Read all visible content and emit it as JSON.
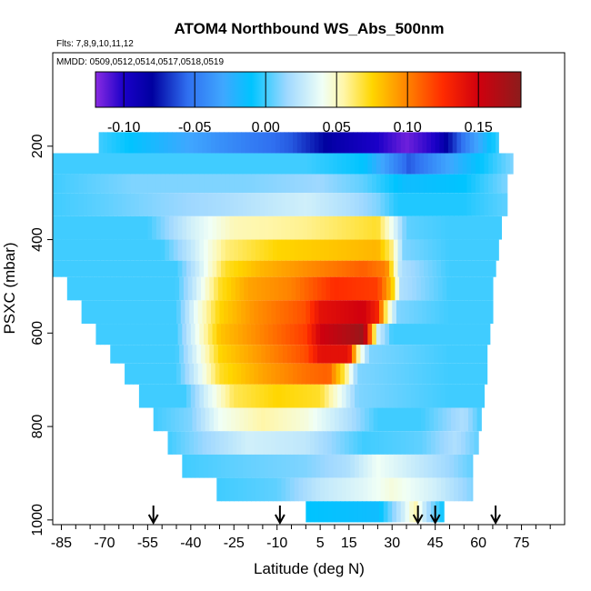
{
  "chart_data": {
    "type": "heatmap",
    "title": "ATOM4 Northbound WS_Abs_500nm",
    "flights_note": "Flts: 7,8,9,10,11,12",
    "dates_note": "MMDD: 0509,0512,0514,0517,0518,0519",
    "xlabel": "Latitude (deg N)",
    "ylabel": "PSXC (mbar)",
    "xlim": [
      -88,
      90
    ],
    "ylim": [
      1010,
      0
    ],
    "x_ticks": [
      -85,
      -70,
      -55,
      -40,
      -25,
      -10,
      5,
      15,
      30,
      45,
      60,
      75
    ],
    "x_tick_labels": [
      "-85",
      "-70",
      "-55",
      "-40",
      "-25",
      "-10",
      "5",
      "15",
      "30",
      "45",
      "60",
      "75"
    ],
    "y_ticks": [
      200,
      400,
      600,
      800,
      1000
    ],
    "y_tick_labels": [
      "200",
      "400",
      "600",
      "800",
      "1000"
    ],
    "colorbar": {
      "min": -0.12,
      "max": 0.18,
      "ticks": [
        -0.1,
        -0.05,
        0.0,
        0.05,
        0.1,
        0.15
      ],
      "tick_labels": [
        "-0.10",
        "-0.05",
        "0.00",
        "0.05",
        "0.10",
        "0.15"
      ],
      "stops": [
        {
          "v": -0.12,
          "c": "#8a2be2"
        },
        {
          "v": -0.1,
          "c": "#1a00c8"
        },
        {
          "v": -0.08,
          "c": "#0000a0"
        },
        {
          "v": -0.055,
          "c": "#2f6ff0"
        },
        {
          "v": -0.03,
          "c": "#3fa7ff"
        },
        {
          "v": -0.01,
          "c": "#00c4ff"
        },
        {
          "v": 0.015,
          "c": "#9fd8ff"
        },
        {
          "v": 0.04,
          "c": "#f0fff6"
        },
        {
          "v": 0.055,
          "c": "#fff6a8"
        },
        {
          "v": 0.075,
          "c": "#ffd600"
        },
        {
          "v": 0.095,
          "c": "#ff9300"
        },
        {
          "v": 0.125,
          "c": "#ff2b00"
        },
        {
          "v": 0.15,
          "c": "#d0000e"
        },
        {
          "v": 0.18,
          "c": "#8c1c1c"
        }
      ]
    },
    "profile_markers_lat": [
      -53,
      -9,
      39,
      45,
      66
    ],
    "pressure_levels": [
      {
        "p_top": 170,
        "p_bot": 215,
        "lat_min": -72,
        "lat_max": 67,
        "anchors": [
          [
            -72,
            0.0
          ],
          [
            -30,
            -0.04
          ],
          [
            -5,
            -0.06
          ],
          [
            10,
            -0.085
          ],
          [
            25,
            -0.1
          ],
          [
            35,
            -0.115
          ],
          [
            45,
            -0.1
          ],
          [
            55,
            -0.05
          ],
          [
            67,
            0.0
          ]
        ]
      },
      {
        "p_top": 215,
        "p_bot": 260,
        "lat_min": -88,
        "lat_max": 72,
        "anchors": [
          [
            -88,
            0.0
          ],
          [
            -40,
            0.0
          ],
          [
            0,
            0.0
          ],
          [
            20,
            -0.01
          ],
          [
            36,
            -0.06
          ],
          [
            45,
            -0.04
          ],
          [
            55,
            -0.02
          ],
          [
            72,
            0.01
          ]
        ]
      },
      {
        "p_top": 260,
        "p_bot": 300,
        "lat_min": -88,
        "lat_max": 70,
        "anchors": [
          [
            -88,
            0.0
          ],
          [
            -60,
            0.01
          ],
          [
            -20,
            0.01
          ],
          [
            5,
            0.015
          ],
          [
            20,
            0.005
          ],
          [
            35,
            -0.015
          ],
          [
            55,
            -0.01
          ],
          [
            70,
            0.01
          ]
        ]
      },
      {
        "p_top": 300,
        "p_bot": 350,
        "lat_min": -88,
        "lat_max": 70,
        "anchors": [
          [
            -88,
            0.0
          ],
          [
            -70,
            0.005
          ],
          [
            -50,
            0.012
          ],
          [
            -30,
            0.018
          ],
          [
            0,
            0.03
          ],
          [
            15,
            0.02
          ],
          [
            25,
            0.01
          ],
          [
            32,
            -0.005
          ],
          [
            55,
            -0.005
          ],
          [
            70,
            0.005
          ]
        ]
      },
      {
        "p_top": 350,
        "p_bot": 400,
        "lat_min": -88,
        "lat_max": 68,
        "anchors": [
          [
            -88,
            0.0
          ],
          [
            -55,
            0.0
          ],
          [
            -40,
            0.03
          ],
          [
            -25,
            0.052
          ],
          [
            0,
            0.058
          ],
          [
            15,
            0.065
          ],
          [
            25,
            0.07
          ],
          [
            30,
            0.04
          ],
          [
            35,
            0.005
          ],
          [
            50,
            0.0
          ],
          [
            68,
            0.0
          ]
        ]
      },
      {
        "p_top": 400,
        "p_bot": 445,
        "lat_min": -88,
        "lat_max": 67,
        "anchors": [
          [
            -88,
            0.0
          ],
          [
            -50,
            0.0
          ],
          [
            -40,
            0.025
          ],
          [
            -28,
            0.06
          ],
          [
            -10,
            0.075
          ],
          [
            10,
            0.08
          ],
          [
            25,
            0.085
          ],
          [
            30,
            0.06
          ],
          [
            34,
            0.01
          ],
          [
            50,
            0.0
          ],
          [
            67,
            0.0
          ]
        ]
      },
      {
        "p_top": 445,
        "p_bot": 480,
        "lat_min": -88,
        "lat_max": 66,
        "anchors": [
          [
            -88,
            0.0
          ],
          [
            -45,
            0.0
          ],
          [
            -37,
            0.03
          ],
          [
            -28,
            0.07
          ],
          [
            -15,
            0.085
          ],
          [
            5,
            0.1
          ],
          [
            20,
            0.11
          ],
          [
            28,
            0.1
          ],
          [
            33,
            0.02
          ],
          [
            50,
            0.0
          ],
          [
            66,
            0.0
          ]
        ]
      },
      {
        "p_top": 480,
        "p_bot": 530,
        "lat_min": -83,
        "lat_max": 65,
        "anchors": [
          [
            -83,
            0.0
          ],
          [
            -45,
            0.0
          ],
          [
            -38,
            0.03
          ],
          [
            -30,
            0.07
          ],
          [
            -20,
            0.09
          ],
          [
            -5,
            0.1
          ],
          [
            10,
            0.125
          ],
          [
            25,
            0.12
          ],
          [
            30,
            0.08
          ],
          [
            33,
            0.02
          ],
          [
            50,
            0.0
          ],
          [
            65,
            0.0
          ]
        ]
      },
      {
        "p_top": 530,
        "p_bot": 580,
        "lat_min": -78,
        "lat_max": 65,
        "anchors": [
          [
            -78,
            0.0
          ],
          [
            -45,
            0.0
          ],
          [
            -38,
            0.04
          ],
          [
            -30,
            0.075
          ],
          [
            -18,
            0.095
          ],
          [
            0,
            0.115
          ],
          [
            5,
            0.14
          ],
          [
            20,
            0.15
          ],
          [
            25,
            0.13
          ],
          [
            28,
            0.06
          ],
          [
            32,
            0.01
          ],
          [
            50,
            0.0
          ],
          [
            65,
            0.0
          ]
        ]
      },
      {
        "p_top": 580,
        "p_bot": 625,
        "lat_min": -73,
        "lat_max": 64,
        "anchors": [
          [
            -73,
            0.0
          ],
          [
            -45,
            0.0
          ],
          [
            -37,
            0.045
          ],
          [
            -30,
            0.08
          ],
          [
            -15,
            0.1
          ],
          [
            0,
            0.12
          ],
          [
            5,
            0.15
          ],
          [
            15,
            0.165
          ],
          [
            20,
            0.175
          ],
          [
            22,
            0.12
          ],
          [
            25,
            0.03
          ],
          [
            30,
            0.0
          ],
          [
            50,
            0.0
          ],
          [
            64,
            0.0
          ]
        ]
      },
      {
        "p_top": 625,
        "p_bot": 665,
        "lat_min": -68,
        "lat_max": 63,
        "anchors": [
          [
            -68,
            0.0
          ],
          [
            -45,
            0.0
          ],
          [
            -37,
            0.04
          ],
          [
            -30,
            0.075
          ],
          [
            -15,
            0.095
          ],
          [
            0,
            0.115
          ],
          [
            5,
            0.14
          ],
          [
            15,
            0.14
          ],
          [
            18,
            0.06
          ],
          [
            22,
            0.01
          ],
          [
            50,
            0.0
          ],
          [
            63,
            0.0
          ]
        ]
      },
      {
        "p_top": 665,
        "p_bot": 710,
        "lat_min": -63,
        "lat_max": 63,
        "anchors": [
          [
            -63,
            0.0
          ],
          [
            -45,
            0.0
          ],
          [
            -37,
            0.035
          ],
          [
            -30,
            0.07
          ],
          [
            -15,
            0.09
          ],
          [
            0,
            0.105
          ],
          [
            8,
            0.11
          ],
          [
            14,
            0.06
          ],
          [
            18,
            0.01
          ],
          [
            50,
            0.0
          ],
          [
            63,
            0.0
          ]
        ]
      },
      {
        "p_top": 710,
        "p_bot": 760,
        "lat_min": -58,
        "lat_max": 62,
        "anchors": [
          [
            -58,
            0.0
          ],
          [
            -42,
            0.0
          ],
          [
            -35,
            0.03
          ],
          [
            -25,
            0.065
          ],
          [
            -10,
            0.075
          ],
          [
            5,
            0.07
          ],
          [
            12,
            0.04
          ],
          [
            18,
            0.01
          ],
          [
            50,
            0.0
          ],
          [
            62,
            0.0
          ]
        ]
      },
      {
        "p_top": 760,
        "p_bot": 810,
        "lat_min": -53,
        "lat_max": 61,
        "anchors": [
          [
            -53,
            0.0
          ],
          [
            -40,
            0.01
          ],
          [
            -30,
            0.04
          ],
          [
            -15,
            0.055
          ],
          [
            0,
            0.045
          ],
          [
            15,
            0.02
          ],
          [
            25,
            0.0
          ],
          [
            40,
            0.0
          ],
          [
            55,
            0.02
          ],
          [
            61,
            0.0
          ]
        ]
      },
      {
        "p_top": 810,
        "p_bot": 860,
        "lat_min": -48,
        "lat_max": 60,
        "anchors": [
          [
            -48,
            0.0
          ],
          [
            -35,
            0.015
          ],
          [
            -20,
            0.03
          ],
          [
            0,
            0.025
          ],
          [
            20,
            0.0
          ],
          [
            40,
            0.005
          ],
          [
            52,
            0.02
          ],
          [
            60,
            0.005
          ]
        ]
      },
      {
        "p_top": 860,
        "p_bot": 910,
        "lat_min": -43,
        "lat_max": 58,
        "anchors": [
          [
            -43,
            0.0
          ],
          [
            -25,
            0.005
          ],
          [
            0,
            0.01
          ],
          [
            15,
            0.02
          ],
          [
            25,
            0.04
          ],
          [
            40,
            0.025
          ],
          [
            50,
            0.015
          ],
          [
            58,
            0.005
          ]
        ]
      },
      {
        "p_top": 910,
        "p_bot": 960,
        "lat_min": -31,
        "lat_max": 58,
        "anchors": [
          [
            -31,
            0.0
          ],
          [
            -10,
            0.005
          ],
          [
            5,
            0.025
          ],
          [
            20,
            0.035
          ],
          [
            30,
            0.045
          ],
          [
            45,
            0.03
          ],
          [
            58,
            0.01
          ]
        ]
      },
      {
        "p_top": 960,
        "p_bot": 1005,
        "lat_min": 0,
        "lat_max": 48,
        "anchors": [
          [
            0,
            -0.01
          ],
          [
            10,
            -0.012
          ],
          [
            25,
            -0.015
          ],
          [
            34,
            0.03
          ],
          [
            38,
            0.055
          ],
          [
            42,
            0.02
          ],
          [
            48,
            -0.01
          ]
        ]
      }
    ]
  }
}
